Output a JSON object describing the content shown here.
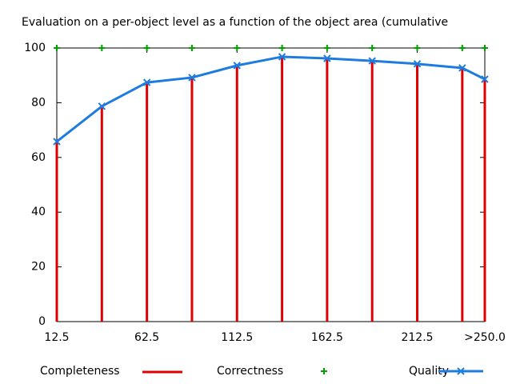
{
  "chart_data": {
    "type": "line",
    "title": "Evaluation on a per-object level as a function of the object area (cumulative",
    "x": [
      12.5,
      37.5,
      62.5,
      87.5,
      112.5,
      137.5,
      162.5,
      187.5,
      212.5,
      237.5,
      250
    ],
    "xlim": [
      12.5,
      250
    ],
    "xticks": [
      12.5,
      62.5,
      112.5,
      162.5,
      212.5,
      {
        "value": 250,
        "label": ">250.0"
      }
    ],
    "ylim": [
      0,
      100
    ],
    "yticks": [
      0,
      20,
      40,
      60,
      80,
      100
    ],
    "grid": false,
    "legend": "bottom",
    "series": [
      {
        "name": "Completeness",
        "color": "#e00000",
        "style": "impulses",
        "values": [
          66,
          79,
          87,
          89,
          94,
          97,
          96,
          95,
          94,
          93,
          89
        ]
      },
      {
        "name": "Correctness",
        "color": "#00a000",
        "style": "points",
        "values": [
          100,
          100,
          100,
          100,
          100,
          100,
          100,
          100,
          100,
          100,
          100
        ]
      },
      {
        "name": "Quality",
        "color": "#1e7be0",
        "style": "linespoints",
        "values": [
          65.8,
          78.7,
          87.4,
          89.2,
          93.6,
          96.8,
          96.2,
          95.3,
          94.2,
          92.7,
          88.6
        ]
      }
    ]
  }
}
